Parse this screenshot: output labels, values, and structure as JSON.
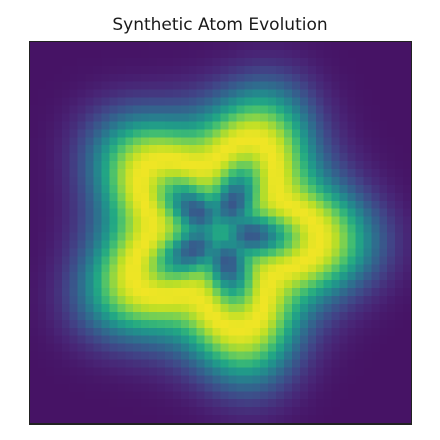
{
  "chart_data": {
    "type": "heatmap",
    "title": "Synthetic Atom Evolution",
    "xlabel": "",
    "ylabel": "",
    "colormap": "viridis",
    "grid_size": [
      48,
      48
    ],
    "grid": false,
    "axes_ticks": false,
    "value_range": [
      0,
      1
    ],
    "pattern": {
      "shape": "five-lobed ring",
      "lobes": 5,
      "center_value": 0.62,
      "ring_peak_value": 0.97,
      "edge_value": 0.05
    }
  }
}
